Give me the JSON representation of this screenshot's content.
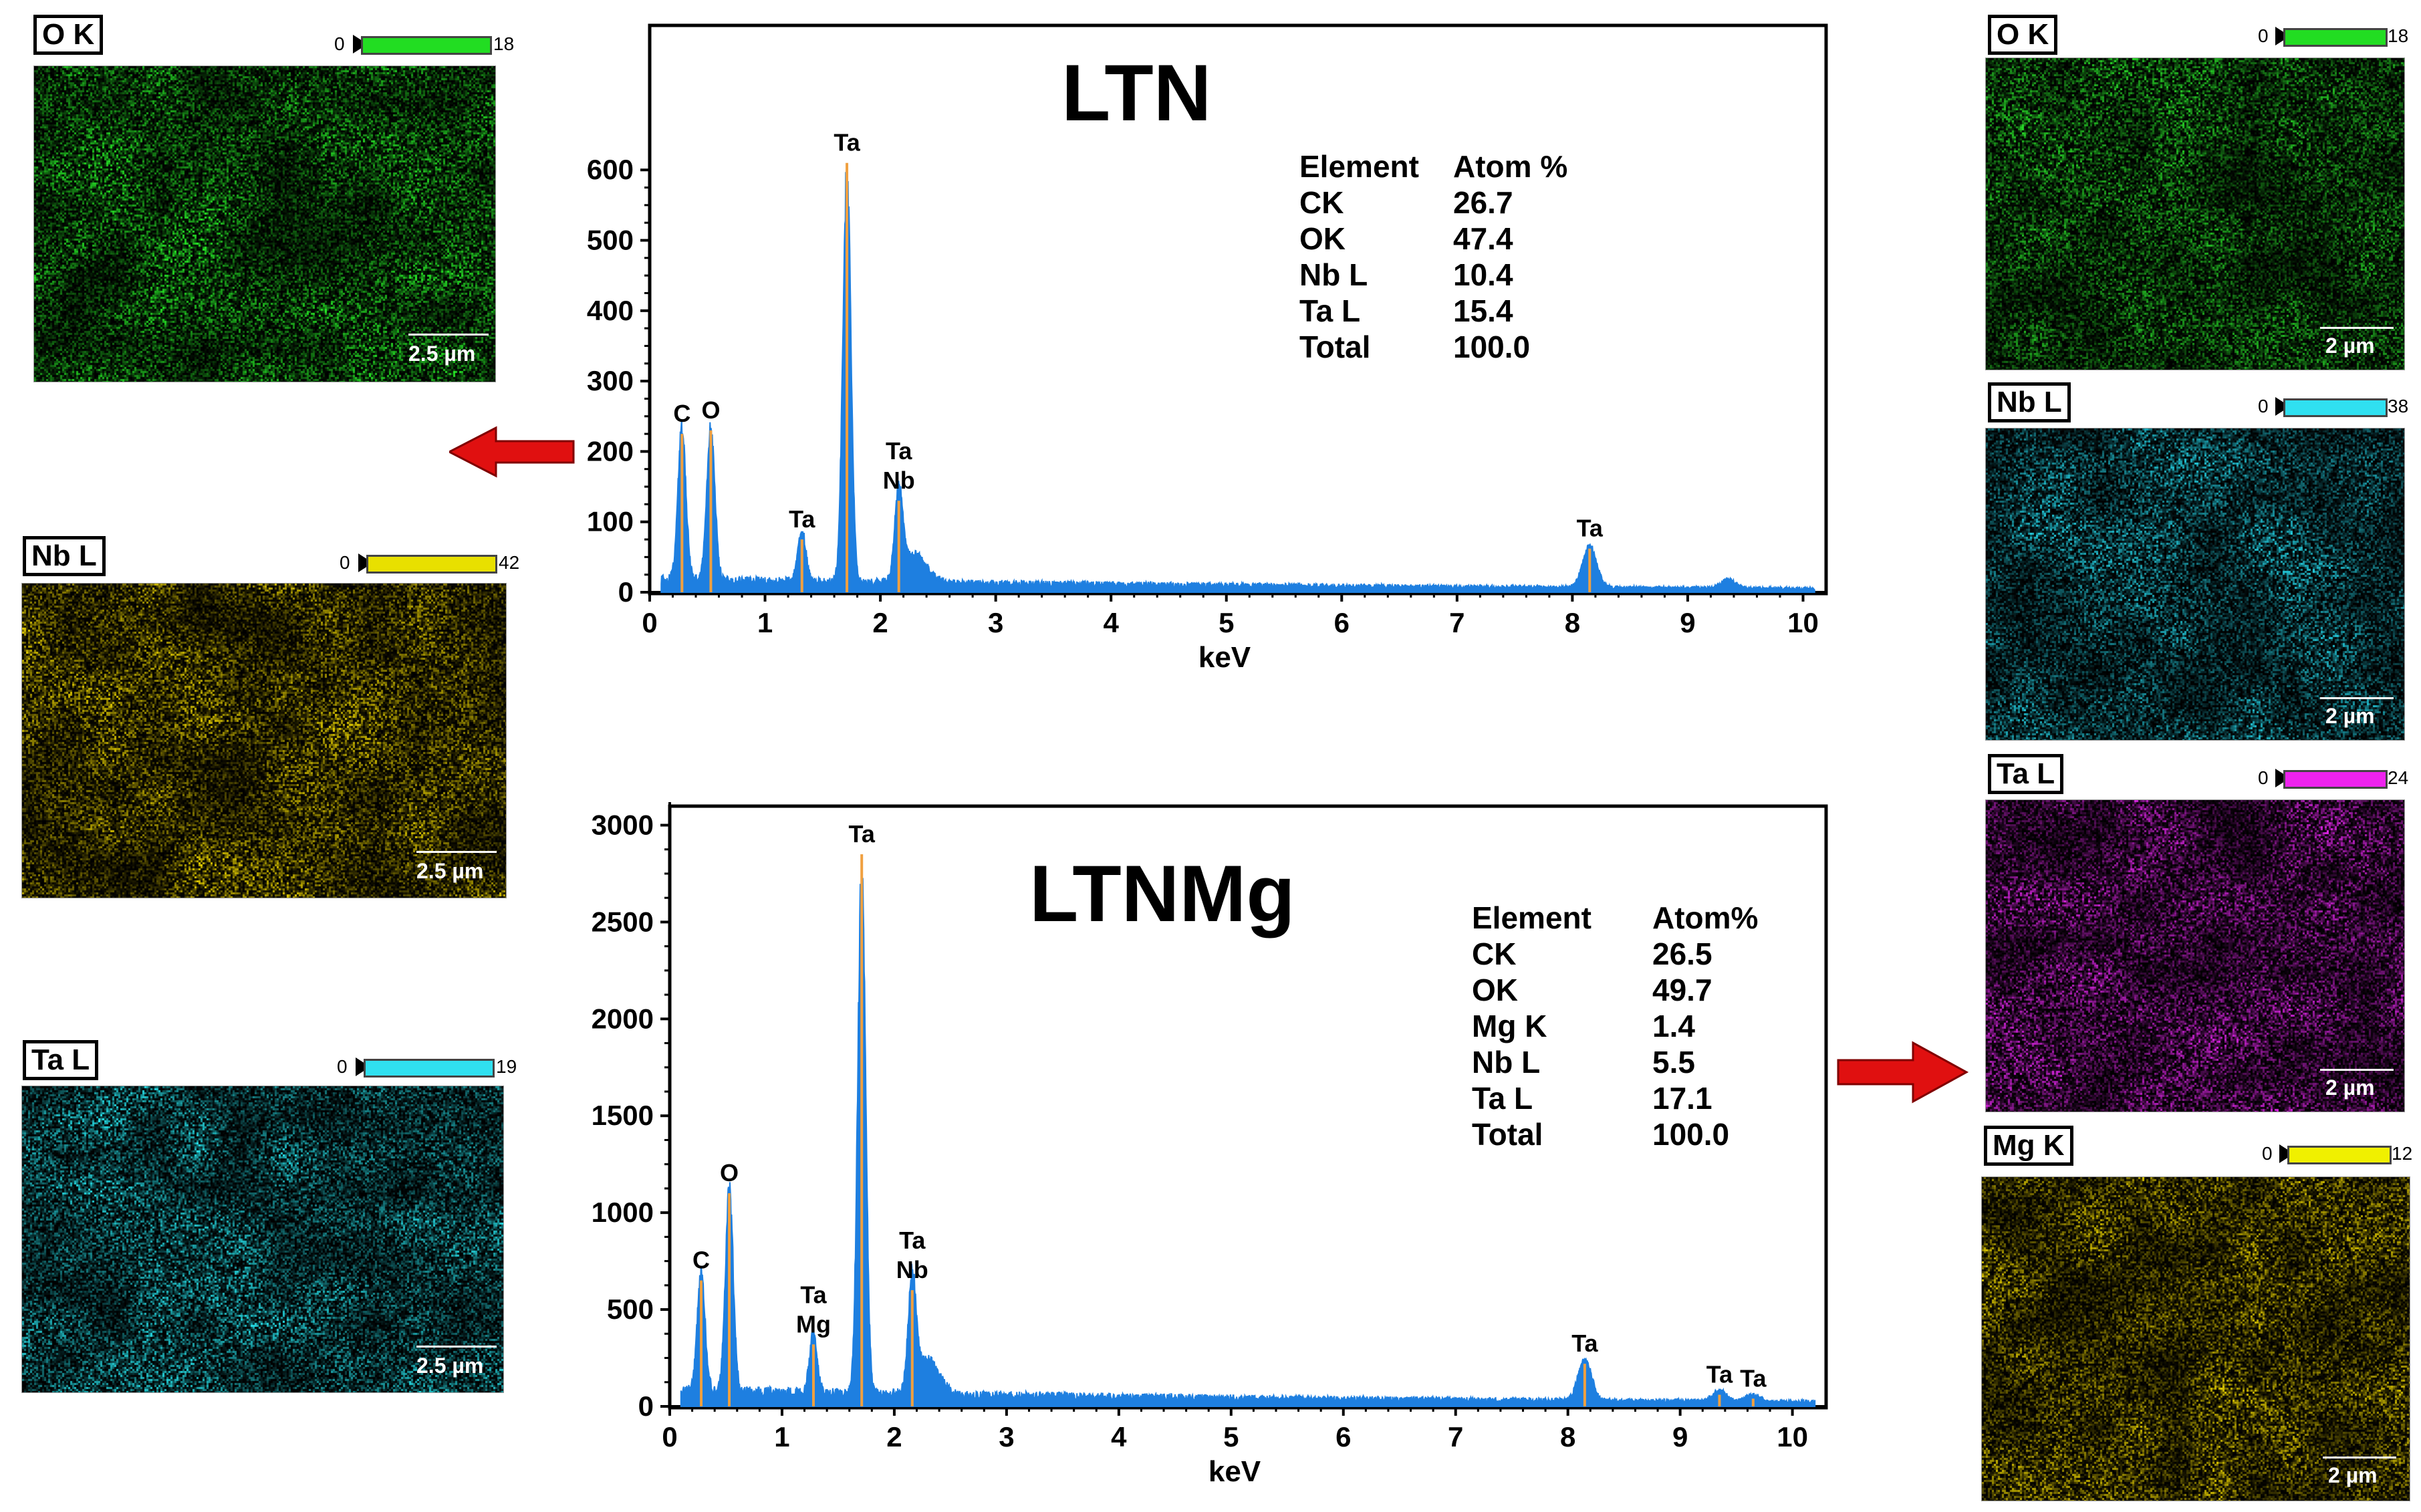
{
  "chart_data": [
    {
      "type": "line",
      "title": "LTN",
      "xlabel": "keV",
      "ylabel": "",
      "xlim": [
        0,
        10.2
      ],
      "ylim": [
        0,
        680
      ],
      "xticks": [
        0,
        1,
        2,
        3,
        4,
        5,
        6,
        7,
        8,
        9,
        10
      ],
      "yticks": [
        0,
        100,
        200,
        300,
        400,
        500,
        600
      ],
      "peaks": [
        {
          "x": 0.28,
          "y": 225,
          "label": "C"
        },
        {
          "x": 0.53,
          "y": 230,
          "label": "O"
        },
        {
          "x": 1.32,
          "y": 75,
          "label": "Ta"
        },
        {
          "x": 1.71,
          "y": 610,
          "label": "Ta"
        },
        {
          "x": 2.16,
          "y": 130,
          "label": "Ta\nNb"
        },
        {
          "x": 8.15,
          "y": 62,
          "label": "Ta"
        }
      ],
      "composition": {
        "header": [
          "Element",
          "Atom %"
        ],
        "rows": [
          [
            "CK",
            "26.7"
          ],
          [
            "OK",
            "47.4"
          ],
          [
            "Nb L",
            "10.4"
          ],
          [
            "Ta L",
            "15.4"
          ],
          [
            "Total",
            "100.0"
          ]
        ]
      }
    },
    {
      "type": "line",
      "title": "LTNMg",
      "xlabel": "keV",
      "ylabel": "",
      "xlim": [
        0,
        10.3
      ],
      "ylim": [
        0,
        3050
      ],
      "xticks": [
        0,
        1,
        2,
        3,
        4,
        5,
        6,
        7,
        8,
        9,
        10
      ],
      "yticks": [
        0,
        500,
        1000,
        1500,
        2000,
        2500,
        3000
      ],
      "peaks": [
        {
          "x": 0.28,
          "y": 650,
          "label": "C"
        },
        {
          "x": 0.53,
          "y": 1100,
          "label": "O"
        },
        {
          "x": 1.28,
          "y": 320,
          "label": "Ta\nMg"
        },
        {
          "x": 1.71,
          "y": 2850,
          "label": "Ta"
        },
        {
          "x": 2.16,
          "y": 600,
          "label": "Ta\nNb"
        },
        {
          "x": 8.15,
          "y": 220,
          "label": "Ta"
        },
        {
          "x": 9.35,
          "y": 60,
          "label": "Ta"
        },
        {
          "x": 9.65,
          "y": 40,
          "label": "Ta"
        }
      ],
      "composition": {
        "header": [
          "Element",
          "Atom%"
        ],
        "rows": [
          [
            "CK",
            "26.5"
          ],
          [
            "OK",
            "49.7"
          ],
          [
            "Mg K",
            "1.4"
          ],
          [
            "Nb L",
            "5.5"
          ],
          [
            "Ta L",
            "17.1"
          ],
          [
            "Total",
            "100.0"
          ]
        ]
      }
    }
  ],
  "maps_left": [
    {
      "label": "O K",
      "min": "0",
      "max": "18",
      "scale": "2.5 µm",
      "color": "#22cc22",
      "bar": "#22dd22"
    },
    {
      "label": "Nb L",
      "min": "0",
      "max": "42",
      "scale": "2.5 µm",
      "color": "#c8b400",
      "bar": "#e8e000"
    },
    {
      "label": "Ta L",
      "min": "0",
      "max": "19",
      "scale": "2.5 µm",
      "color": "#22c8d0",
      "bar": "#30e0f0"
    }
  ],
  "maps_right": [
    {
      "label": "O K",
      "min": "0",
      "max": "18",
      "scale": "2 µm",
      "color": "#22b822",
      "bar": "#22dd22"
    },
    {
      "label": "Nb L",
      "min": "0",
      "max": "38",
      "scale": "2 µm",
      "color": "#1fb4c4",
      "bar": "#30e0f0"
    },
    {
      "label": "Ta L",
      "min": "0",
      "max": "24",
      "scale": "2 µm",
      "color": "#c020c8",
      "bar": "#ee22ee"
    },
    {
      "label": "Mg K",
      "min": "0",
      "max": "12",
      "scale": "2 µm",
      "color": "#c8b400",
      "bar": "#f0f000"
    }
  ],
  "colors": {
    "spectrum": "#1e7fe0",
    "peak_line": "#f0a040",
    "arrow": "#e01010"
  }
}
